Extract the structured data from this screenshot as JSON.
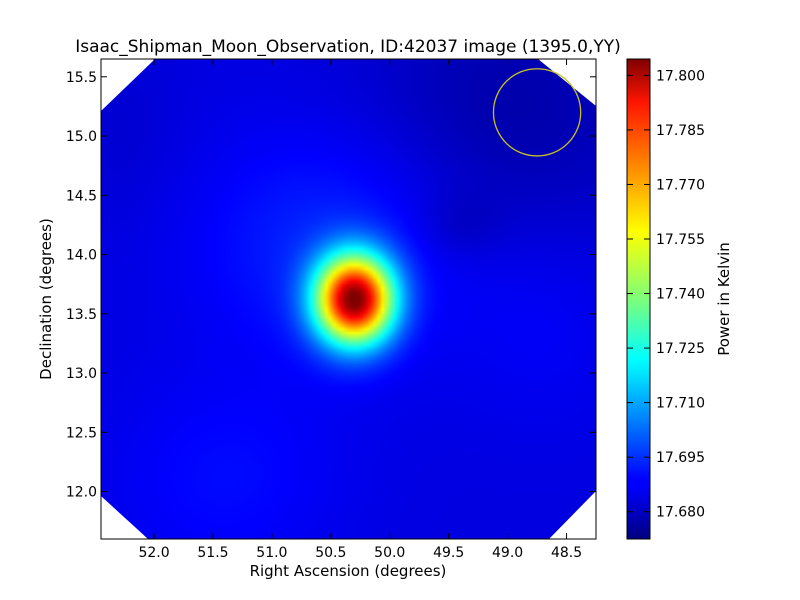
{
  "chart_data": {
    "type": "heatmap",
    "title": "Isaac_Shipman_Moon_Observation, ID:42037 image (1395.0,YY)",
    "xlabel": "Right Ascension (degrees)",
    "ylabel": "Declination (degrees)",
    "colorbar_label": "Power in Kelvin",
    "colormap": "jet",
    "x_inverted": true,
    "xlim": [
      52.45,
      48.25
    ],
    "ylim": [
      11.6,
      15.65
    ],
    "x_ticks": [
      "52.0",
      "51.5",
      "51.0",
      "50.5",
      "50.0",
      "49.5",
      "49.0",
      "48.5"
    ],
    "y_ticks": [
      "12.0",
      "12.5",
      "13.0",
      "13.5",
      "14.0",
      "14.5",
      "15.0",
      "15.5"
    ],
    "colorbar_ticks": [
      "17.680",
      "17.695",
      "17.710",
      "17.725",
      "17.740",
      "17.755",
      "17.770",
      "17.785",
      "17.800"
    ],
    "colorbar_range": [
      17.6725,
      17.8045
    ],
    "grid": false,
    "peak": {
      "ra": 50.3,
      "dec": 13.62,
      "value": 17.8
    },
    "background_value": 17.685,
    "beam_circle": {
      "ra": 48.75,
      "dec": 15.2,
      "radius_deg": 0.37,
      "color": "#c9c226"
    }
  }
}
